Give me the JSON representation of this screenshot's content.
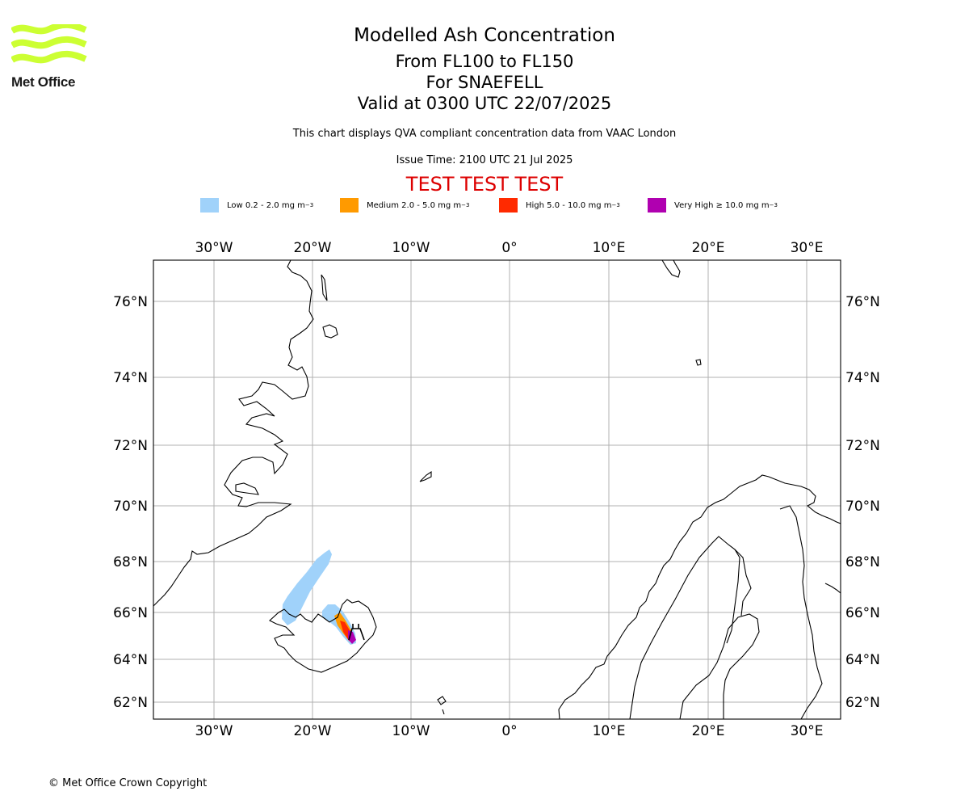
{
  "logo": {
    "text": "Met Office",
    "icon": "met-office-wave-logo"
  },
  "title": {
    "line1": "Modelled Ash Concentration",
    "line2": "From FL100 to FL150",
    "line3": "For SNAEFELL",
    "line4": "Valid at 0300 UTC 22/07/2025"
  },
  "description": "This chart displays QVA compliant concentration data from VAAC London",
  "issue_time": "Issue Time: 2100 UTC 21 Jul 2025",
  "test_banner": {
    "text": "TEST TEST TEST",
    "color": "#dd0000"
  },
  "legend": [
    {
      "label": "Low 0.2 - 2.0 mg m",
      "sup": "−3",
      "color": "#a0d2fa"
    },
    {
      "label": "Medium 2.0 - 5.0 mg m",
      "sup": "−3",
      "color": "#ff9a00"
    },
    {
      "label": "High 5.0 - 10.0 mg m",
      "sup": "−3",
      "color": "#ff2a00"
    },
    {
      "label": "Very High ≥ 10.0 mg m",
      "sup": "−3",
      "color": "#b000b0"
    }
  ],
  "map": {
    "lon_ticks": [
      "30°W",
      "20°W",
      "10°W",
      "0°",
      "10°E",
      "20°E",
      "30°E"
    ],
    "lat_ticks": [
      "76°N",
      "74°N",
      "72°N",
      "70°N",
      "68°N",
      "66°N",
      "64°N",
      "62°N"
    ],
    "volcano_marker": "volcano-symbol"
  },
  "copyright": "© Met Office Crown Copyright"
}
